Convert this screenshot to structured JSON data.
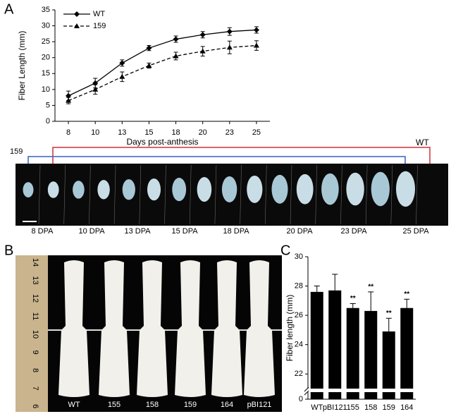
{
  "panel_letters": [
    "A",
    "B",
    "C"
  ],
  "strip": {
    "left_label": "159",
    "right_label": "WT",
    "stage_labels": [
      "8 DPA",
      "10 DPA",
      "13 DPA",
      "15 DPA",
      "18 DPA",
      "20 DPA",
      "23 DPA",
      "25 DPA"
    ]
  },
  "photo": {
    "ruler_labels": [
      "14",
      "13",
      "12",
      "11",
      "10",
      "9",
      "8",
      "7",
      "6"
    ],
    "sample_labels": [
      "WT",
      "155",
      "158",
      "159",
      "164",
      "pBI121"
    ]
  },
  "chart_data": [
    {
      "type": "line",
      "y_label": "Fiber Length (mm)",
      "x_label": "Days post-anthesis",
      "categories": [
        "8",
        "10",
        "13",
        "15",
        "18",
        "20",
        "23",
        "25"
      ],
      "ylim": [
        0,
        35
      ],
      "yticks": [
        0,
        5,
        10,
        15,
        20,
        25,
        30,
        35
      ],
      "series": [
        {
          "name": "WT",
          "color": "#000000",
          "line_style": "solid",
          "marker": "diamond",
          "values": [
            8,
            12,
            18.3,
            23,
            25.8,
            27.2,
            28.2,
            28.7
          ],
          "errors": [
            1.5,
            1.5,
            1,
            0.8,
            1,
            1,
            1.2,
            1
          ]
        },
        {
          "name": "159",
          "color": "#000000",
          "line_style": "dashed",
          "marker": "triangle",
          "values": [
            6.5,
            10,
            14,
            17.5,
            20.5,
            22,
            23.2,
            23.8
          ],
          "errors": [
            1,
            1.5,
            1.5,
            0.8,
            1.2,
            1.5,
            2,
            1.5
          ]
        }
      ]
    },
    {
      "type": "bar",
      "y_label": "Fiber length (mm)",
      "categories": [
        "WT",
        "pBI121",
        "155",
        "158",
        "159",
        "164"
      ],
      "values": [
        27.6,
        27.7,
        26.5,
        26.3,
        24.9,
        26.5
      ],
      "errors": [
        0.4,
        1.1,
        0.3,
        1.3,
        0.9,
        0.6
      ],
      "annotations": [
        null,
        null,
        "**",
        "**",
        "**",
        "**"
      ],
      "color": "#000000",
      "ylim": [
        21,
        30
      ],
      "yticks": [
        22,
        24,
        26,
        28,
        30
      ],
      "axis_break_value": 0
    }
  ]
}
